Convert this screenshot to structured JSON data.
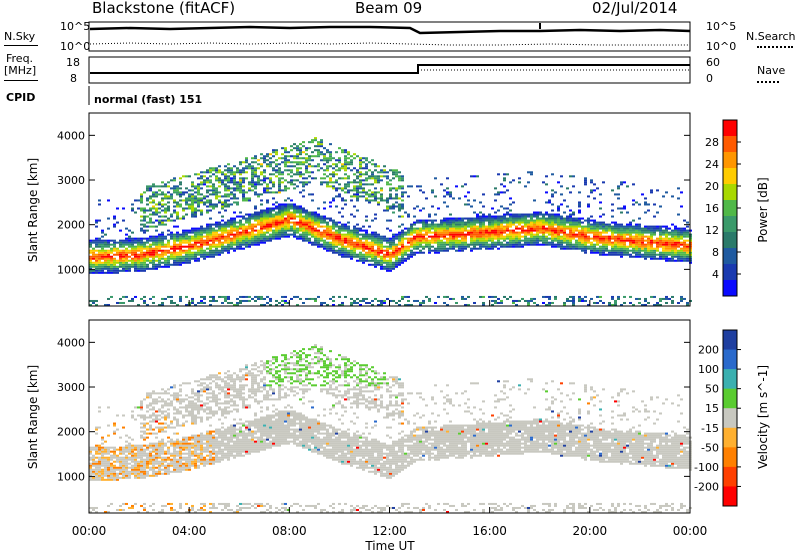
{
  "header": {
    "station": "Blackstone (fitACF)",
    "beam": "Beam 09",
    "date": "02/Jul/2014"
  },
  "left_labels": {
    "nsky": "N.Sky",
    "freq_line1": "Freq.",
    "freq_line2": "[MHz]",
    "cpid": "CPID"
  },
  "right_labels": {
    "nsearch": "N.Search",
    "nave": "Nave"
  },
  "noise_axis": {
    "top": "10^5",
    "bottom": "10^0"
  },
  "freq_axis": {
    "left_ticks": [
      "18",
      "8"
    ],
    "right_ticks": [
      "60",
      "0"
    ]
  },
  "cpid_text": "normal (fast) 151",
  "power_colorbar": {
    "label": "Power [dB]",
    "ticks": [
      "28",
      "24",
      "20",
      "16",
      "12",
      "8",
      "4"
    ],
    "colors": [
      "#ff0000",
      "#ff5a00",
      "#ff9600",
      "#ffcc00",
      "#a8d800",
      "#50b848",
      "#3a9a6a",
      "#2a7a6a",
      "#1f5aa0",
      "#1a3ab0",
      "#0a0aff"
    ]
  },
  "velocity_colorbar": {
    "label": "Velocity [m s^-1]",
    "ticks": [
      "200",
      "100",
      "50",
      "15",
      "-15",
      "-50",
      "-100",
      "-200"
    ],
    "colors": [
      "#1f3fa0",
      "#2a6acc",
      "#3ab0b0",
      "#5acc30",
      "#c8c8c0",
      "#ffb030",
      "#ff8000",
      "#ff4000",
      "#ff0000"
    ]
  },
  "chart_data": [
    {
      "type": "heatmap",
      "panel": "power",
      "ylabel": "Slant Range [km]",
      "ylim": [
        180,
        4500
      ],
      "yticks": [
        "1000",
        "2000",
        "3000",
        "4000"
      ],
      "xlim": [
        "00:00",
        "24:00"
      ],
      "echo_band_center_km": {
        "x": [
          "00:00",
          "02:00",
          "04:00",
          "06:00",
          "08:00",
          "10:00",
          "12:00",
          "13:00",
          "16:00",
          "18:00",
          "20:00",
          "22:00",
          "24:00"
        ],
        "y": [
          1250,
          1300,
          1500,
          1800,
          2100,
          1650,
          1300,
          1700,
          1800,
          1900,
          1700,
          1600,
          1500
        ]
      }
    },
    {
      "type": "heatmap",
      "panel": "velocity",
      "ylabel": "Slant Range [km]",
      "ylim": [
        180,
        4500
      ],
      "yticks": [
        "1000",
        "2000",
        "3000",
        "4000"
      ],
      "xlabel": "Time UT",
      "xticks": [
        "00:00",
        "04:00",
        "08:00",
        "12:00",
        "16:00",
        "20:00",
        "00:00"
      ]
    }
  ]
}
